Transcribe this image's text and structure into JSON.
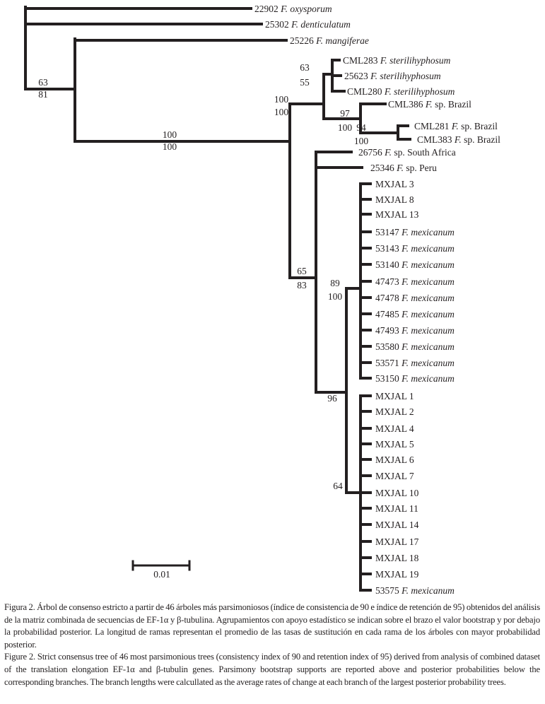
{
  "figure": {
    "taxa": [
      {
        "code": "22902",
        "genus": "F.",
        "rest": "oxysporum",
        "rest_italic": true
      },
      {
        "code": "25302",
        "genus": "F.",
        "rest": "denticulatum",
        "rest_italic": true
      },
      {
        "code": "25226",
        "genus": "F.",
        "rest": "mangiferae",
        "rest_italic": true
      },
      {
        "code": "CML283",
        "genus": "F.",
        "rest": "sterilihyphosum",
        "rest_italic": true
      },
      {
        "code": "25623",
        "genus": "F.",
        "rest": "sterilihyphosum",
        "rest_italic": true
      },
      {
        "code": "CML280",
        "genus": "F.",
        "rest": "sterilihyphosum",
        "rest_italic": true
      },
      {
        "code": "CML386",
        "genus": "F.",
        "rest": "sp. Brazil",
        "rest_italic": false
      },
      {
        "code": "CML281",
        "genus": "F.",
        "rest": "sp. Brazil",
        "rest_italic": false
      },
      {
        "code": "CML383",
        "genus": "F.",
        "rest": "sp. Brazil",
        "rest_italic": false
      },
      {
        "code": "26756",
        "genus": "F.",
        "rest": "sp. South Africa",
        "rest_italic": false
      },
      {
        "code": "25346",
        "genus": "F.",
        "rest": "sp. Peru",
        "rest_italic": false
      },
      {
        "code": "MXJAL 3"
      },
      {
        "code": "MXJAL 8"
      },
      {
        "code": "MXJAL 13"
      },
      {
        "code": "53147",
        "genus": "F.",
        "rest": "mexicanum",
        "rest_italic": true
      },
      {
        "code": "53143",
        "genus": "F.",
        "rest": "mexicanum",
        "rest_italic": true
      },
      {
        "code": "53140",
        "genus": "F.",
        "rest": "mexicanum",
        "rest_italic": true
      },
      {
        "code": "47473",
        "genus": "F.",
        "rest": "mexicanum",
        "rest_italic": true
      },
      {
        "code": "47478",
        "genus": "F.",
        "rest": "mexicanum",
        "rest_italic": true
      },
      {
        "code": "47485",
        "genus": "F.",
        "rest": "mexicanum",
        "rest_italic": true
      },
      {
        "code": "47493",
        "genus": "F.",
        "rest": "mexicanum",
        "rest_italic": true
      },
      {
        "code": "53580",
        "genus": "F.",
        "rest": "mexicanum",
        "rest_italic": true
      },
      {
        "code": "53571",
        "genus": "F.",
        "rest": "mexicanum",
        "rest_italic": true
      },
      {
        "code": "53150",
        "genus": "F.",
        "rest": "mexicanum",
        "rest_italic": true
      },
      {
        "code": "MXJAL 1"
      },
      {
        "code": "MXJAL 2"
      },
      {
        "code": "MXJAL 4"
      },
      {
        "code": "MXJAL 5"
      },
      {
        "code": "MXJAL 6"
      },
      {
        "code": "MXJAL 7"
      },
      {
        "code": "MXJAL 10"
      },
      {
        "code": "MXJAL 11"
      },
      {
        "code": "MXJAL 14"
      },
      {
        "code": "MXJAL 17"
      },
      {
        "code": "MXJAL 18"
      },
      {
        "code": "MXJAL 19"
      },
      {
        "code": "53575",
        "genus": "F.",
        "rest": "mexicanum",
        "rest_italic": true
      }
    ],
    "supports": [
      {
        "bootstrap": "63",
        "posterior": "81"
      },
      {
        "bootstrap": "100",
        "posterior": "100"
      },
      {
        "bootstrap": "100",
        "posterior": "100"
      },
      {
        "bootstrap": "63",
        "posterior": "55"
      },
      {
        "bootstrap": "97",
        "posterior": "100"
      },
      {
        "bootstrap": "94",
        "posterior": "100"
      },
      {
        "bootstrap": "65",
        "posterior": "83"
      },
      {
        "bootstrap": "89",
        "posterior": "100"
      },
      {
        "bootstrap": "96",
        "posterior": ""
      },
      {
        "bootstrap": "64",
        "posterior": ""
      }
    ],
    "scale_bar_label": "0.01"
  },
  "caption": {
    "spanish": "Figura 2. Árbol de consenso estricto a partir de 46 árboles más parsimoniosos (índice de consistencia de 90 e índice de retención de 95) obtenidos del análisis de la matriz combinada de secuencias de EF-1α y β-tubulina. Agrupamientos con apoyo estadístico se indican sobre el brazo el valor bootstrap y por debajo la probabilidad posterior. La longitud de ramas representan el promedio de las tasas de sustitución en cada rama de los árboles con mayor probabilidad posterior.",
    "english": "Figure 2. Strict consensus tree of 46 most parsimonious trees (consistency index of 90 and retention index of 95) derived from analysis of combined dataset of the translation elongation EF-1α and β-tubulin genes. Parsimony bootstrap supports are reported above and posterior probabilities below the corresponding branches. The branch lengths were calcullated as the average rates of change at each branch of the largest posterior probability trees."
  }
}
